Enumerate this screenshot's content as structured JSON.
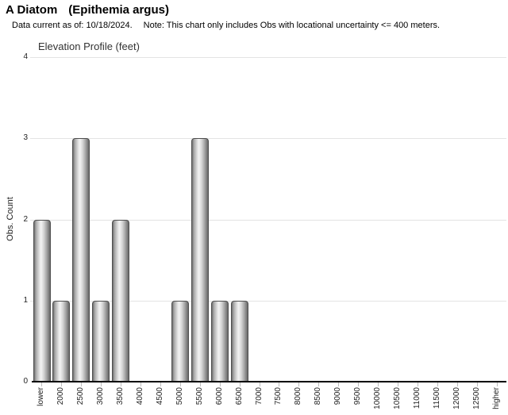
{
  "header": {
    "title": "A Diatom",
    "title_scientific": "(Epithemia argus)",
    "subtitle_date": "Data current as of: 10/18/2024.",
    "subtitle_note": "Note: This chart only includes Obs with locational uncertainty <= 400 meters."
  },
  "chart_data": {
    "type": "bar",
    "title": "Elevation Profile (feet)",
    "xlabel": "",
    "ylabel": "Obs. Count",
    "ylim": [
      0,
      4
    ],
    "yticks": [
      0,
      1,
      2,
      3,
      4
    ],
    "grid": true,
    "legend_position": "none",
    "categories": [
      "lower",
      "2000",
      "2500",
      "3000",
      "3500",
      "4000",
      "4500",
      "5000",
      "5500",
      "6000",
      "6500",
      "7000",
      "7500",
      "8000",
      "8500",
      "9000",
      "9500",
      "10000",
      "10500",
      "11000",
      "11500",
      "12000",
      "12500",
      "higher"
    ],
    "values": [
      2,
      1,
      3,
      1,
      2,
      0,
      0,
      1,
      3,
      1,
      1,
      0,
      0,
      0,
      0,
      0,
      0,
      0,
      0,
      0,
      0,
      0,
      0,
      0
    ],
    "colors": {
      "bar_fill_light": "#f2f2f2",
      "bar_fill_dark": "#6e6e6e",
      "bar_stroke": "#4f4f4f",
      "gridline": "#e3e3e3",
      "axis_line": "#000000",
      "text": "#222222"
    }
  }
}
